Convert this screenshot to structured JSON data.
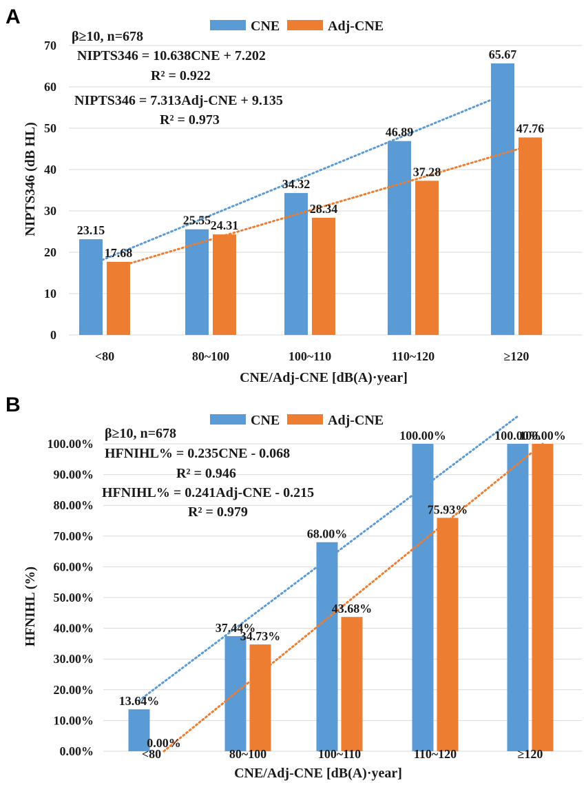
{
  "colors": {
    "cne": "#5b9bd5",
    "adj": "#ed7d31",
    "grid": "#d9d9d9"
  },
  "legend": {
    "cne": "CNE",
    "adj": "Adj-CNE"
  },
  "panels": [
    {
      "letter": "A",
      "annotations": {
        "subset": "β≥10, n=678",
        "eq1": "NIPTS346 = 10.638CNE + 7.202",
        "r1": "R² = 0.922",
        "eq2": "NIPTS346 = 7.313Adj-CNE + 9.135",
        "r2": "R² = 0.973"
      },
      "ylabel": "NIPTS346 (dB HL)",
      "xlabel": "CNE/Adj-CNE [dB(A)·year]"
    },
    {
      "letter": "B",
      "annotations": {
        "subset": "β≥10, n=678",
        "eq1": "HFNIHL% = 0.235CNE - 0.068",
        "r1": "R² = 0.946",
        "eq2": "HFNIHL% = 0.241Adj-CNE - 0.215",
        "r2": "R² = 0.979"
      },
      "ylabel": "HFNIHL (%)",
      "xlabel": "CNE/Adj-CNE [dB(A)·year]"
    }
  ],
  "chart_data": [
    {
      "type": "bar",
      "title": "",
      "categories": [
        "<80",
        "80~100",
        "100~110",
        "110~120",
        "≥120"
      ],
      "series": [
        {
          "name": "CNE",
          "values": [
            23.15,
            25.55,
            34.32,
            46.89,
            65.67
          ],
          "labels": [
            "23.15",
            "25.55",
            "34.32",
            "46.89",
            "65.67"
          ]
        },
        {
          "name": "Adj-CNE",
          "values": [
            17.68,
            24.31,
            28.34,
            37.28,
            47.76
          ],
          "labels": [
            "17.68",
            "24.31",
            "28.34",
            "37.28",
            "47.76"
          ]
        }
      ],
      "trendlines": [
        {
          "series": "CNE",
          "from": 17.0,
          "to": 58.0
        },
        {
          "series": "Adj-CNE",
          "from": 16.5,
          "to": 45.8
        }
      ],
      "ylim": [
        0,
        70
      ],
      "yticks": [
        "0",
        "10",
        "20",
        "30",
        "40",
        "50",
        "60",
        "70"
      ],
      "xlabel": "CNE/Adj-CNE [dB(A)·year]",
      "ylabel": "NIPTS346 (dB HL)",
      "grid": true,
      "legend": "top"
    },
    {
      "type": "bar",
      "title": "",
      "categories": [
        "<80",
        "80~100",
        "100~110",
        "110~120",
        "≥120"
      ],
      "series": [
        {
          "name": "CNE",
          "values": [
            13.64,
            37.44,
            68.0,
            100.0,
            100.0
          ],
          "labels": [
            "13.64%",
            "37.44%",
            "68.00%",
            "100.00%",
            "100.00%"
          ]
        },
        {
          "name": "Adj-CNE",
          "values": [
            0.0,
            34.73,
            43.68,
            75.93,
            100.0
          ],
          "labels": [
            "0.00%",
            "34.73%",
            "43.68%",
            "75.93%",
            "100.00%"
          ]
        }
      ],
      "trendlines": [
        {
          "series": "CNE",
          "from": 16.5,
          "to": 109.0
        },
        {
          "series": "Adj-CNE",
          "from": 0.0,
          "to": 100.0
        }
      ],
      "ylim": [
        0,
        100
      ],
      "yticks": [
        "0.00%",
        "10.00%",
        "20.00%",
        "30.00%",
        "40.00%",
        "50.00%",
        "60.00%",
        "70.00%",
        "80.00%",
        "90.00%",
        "100.00%"
      ],
      "xlabel": "CNE/Adj-CNE [dB(A)·year]",
      "ylabel": "HFNIHL (%)",
      "grid": true,
      "legend": "top"
    }
  ]
}
